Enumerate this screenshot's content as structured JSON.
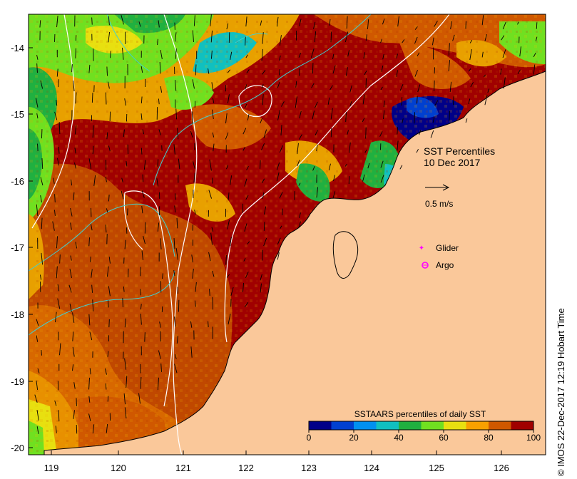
{
  "map": {
    "legend_title": "SSTAARS percentiles of daily SST",
    "legend_ticks": [
      "0",
      "20",
      "40",
      "60",
      "80",
      "100"
    ],
    "legend_colors": [
      "#000088",
      "#0040d0",
      "#0090f0",
      "#10c0c0",
      "#20b040",
      "#70e020",
      "#e8e010",
      "#f8a000",
      "#d05800",
      "#a00000"
    ],
    "x_ticks": [
      "119",
      "120",
      "121",
      "122",
      "123",
      "124",
      "125",
      "126"
    ],
    "y_ticks": [
      "-14",
      "-15",
      "-16",
      "-17",
      "-18",
      "-19",
      "-20"
    ],
    "annotation_title": "SST Percentiles",
    "annotation_date": "10 Dec 2017",
    "arrow_scale_label": "0.5 m/s",
    "marker_glider": "Glider",
    "marker_argo": "Argo",
    "credit": "© IMOS 22-Dec-2017 12:19 Hobart Time",
    "land_color": "#fac89a",
    "hot_color": "#a00000",
    "warm_color": "#d05800",
    "marker_color": "#ff00ff"
  }
}
